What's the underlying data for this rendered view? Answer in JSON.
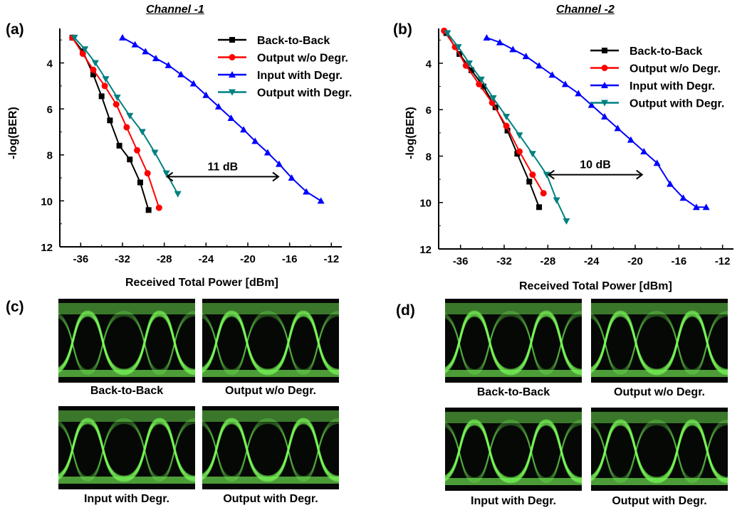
{
  "colors": {
    "back_to_back": "#000000",
    "output_wo": "#ff0000",
    "input_with": "#0000ff",
    "output_with": "#008080",
    "eye_green": "#7cff5a",
    "eye_background": "#050805"
  },
  "panels": {
    "a": "(a)",
    "b": "(b)",
    "c": "(c)",
    "d": "(d)"
  },
  "channel_titles": [
    "Channel -1",
    "Channel -2"
  ],
  "eye_captions": {
    "c": [
      "Back-to-Back",
      "Output w/o Degr.",
      "Input with Degr.",
      "Output  with Degr."
    ],
    "d": [
      "Back-to-Back",
      "Output w/o Degr.",
      "Input with Degr.",
      "Output  with Degr."
    ]
  },
  "chart_data": [
    {
      "type": "line",
      "title": "Channel -1",
      "xlabel": "Received Total Power [dBm]",
      "ylabel": "-log(BER)",
      "xlim": [
        -38,
        -11
      ],
      "ylim": [
        12,
        2.5
      ],
      "xticks": [
        -36,
        -32,
        -28,
        -24,
        -20,
        -16,
        -12
      ],
      "yticks": [
        4,
        6,
        8,
        10,
        12
      ],
      "legend_position": "top-right",
      "annotation": {
        "text": "11 dB",
        "x_from": -27.8,
        "x_to": -17.0,
        "y": 8.95
      },
      "series": [
        {
          "name": "Back-to-Back",
          "marker": "square",
          "color": "#000000",
          "x": [
            -36.8,
            -35.8,
            -34.8,
            -34.0,
            -33.2,
            -32.3,
            -31.3,
            -30.3,
            -29.5
          ],
          "y": [
            2.9,
            3.5,
            4.5,
            5.45,
            6.5,
            7.6,
            8.2,
            9.2,
            10.4
          ]
        },
        {
          "name": "Output w/o Degr.",
          "marker": "circle",
          "color": "#ff0000",
          "x": [
            -36.8,
            -35.8,
            -34.8,
            -33.7,
            -32.6,
            -31.6,
            -30.6,
            -29.6,
            -28.5
          ],
          "y": [
            2.9,
            3.6,
            4.3,
            5.0,
            5.8,
            6.8,
            7.8,
            8.8,
            10.3
          ]
        },
        {
          "name": "Input with Degr.",
          "marker": "triangle-up",
          "color": "#0000ff",
          "x": [
            -32.0,
            -30.8,
            -29.8,
            -28.8,
            -27.6,
            -26.4,
            -25.2,
            -24.0,
            -22.8,
            -21.6,
            -20.4,
            -19.3,
            -18.1,
            -17.0,
            -15.8,
            -14.4,
            -13.0
          ],
          "y": [
            2.9,
            3.2,
            3.5,
            3.8,
            4.1,
            4.5,
            4.9,
            5.4,
            5.9,
            6.4,
            6.9,
            7.4,
            7.9,
            8.4,
            9.0,
            9.6,
            10.0
          ]
        },
        {
          "name": "Output  with Degr.",
          "marker": "triangle-down",
          "color": "#008080",
          "x": [
            -36.6,
            -35.6,
            -34.6,
            -33.6,
            -32.5,
            -31.3,
            -30.1,
            -28.9,
            -27.8,
            -26.7
          ],
          "y": [
            2.9,
            3.4,
            4.0,
            4.7,
            5.5,
            6.3,
            7.0,
            7.9,
            8.8,
            9.7
          ]
        }
      ]
    },
    {
      "type": "line",
      "title": "Channel -2",
      "xlabel": "Received Total Power [dBm]",
      "ylabel": "-log(BER)",
      "xlim": [
        -38,
        -11
      ],
      "ylim": [
        12,
        2.5
      ],
      "xticks": [
        -36,
        -32,
        -28,
        -24,
        -20,
        -16,
        -12
      ],
      "yticks": [
        4,
        6,
        8,
        10,
        12
      ],
      "legend_position": "top-right",
      "annotation": {
        "text": "10 dB",
        "x_from": -28.0,
        "x_to": -19.3,
        "y": 8.8
      },
      "series": [
        {
          "name": "Back-to-Back",
          "marker": "square",
          "color": "#000000",
          "x": [
            -37.3,
            -36.1,
            -35.0,
            -33.9,
            -32.8,
            -31.7,
            -30.8,
            -29.7,
            -28.8
          ],
          "y": [
            2.7,
            3.6,
            4.3,
            5.0,
            5.9,
            6.9,
            7.9,
            9.1,
            10.2
          ]
        },
        {
          "name": "Output w/o Degr.",
          "marker": "circle",
          "color": "#ff0000",
          "x": [
            -37.5,
            -36.5,
            -35.5,
            -34.3,
            -33.1,
            -31.8,
            -30.6,
            -29.4,
            -28.4
          ],
          "y": [
            2.6,
            3.3,
            4.1,
            4.9,
            5.7,
            6.7,
            7.8,
            8.8,
            9.6
          ]
        },
        {
          "name": "Input with Degr.",
          "marker": "triangle-up",
          "color": "#0000ff",
          "x": [
            -33.6,
            -32.4,
            -31.2,
            -30.0,
            -28.8,
            -27.6,
            -26.4,
            -25.2,
            -24.0,
            -22.8,
            -21.6,
            -20.4,
            -19.2,
            -18.0,
            -16.8,
            -15.6,
            -14.4,
            -13.5
          ],
          "y": [
            2.9,
            3.1,
            3.4,
            3.7,
            4.1,
            4.5,
            4.9,
            5.3,
            5.8,
            6.3,
            6.8,
            7.3,
            7.8,
            8.3,
            9.2,
            9.8,
            10.2,
            10.2
          ]
        },
        {
          "name": "Output with Degr.",
          "marker": "triangle-down",
          "color": "#008080",
          "x": [
            -37.2,
            -36.2,
            -35.2,
            -34.1,
            -33.0,
            -31.8,
            -30.6,
            -29.4,
            -28.1,
            -27.2,
            -26.3
          ],
          "y": [
            2.7,
            3.3,
            4.0,
            4.7,
            5.5,
            6.3,
            7.1,
            7.9,
            8.8,
            9.9,
            10.8
          ]
        }
      ]
    }
  ]
}
